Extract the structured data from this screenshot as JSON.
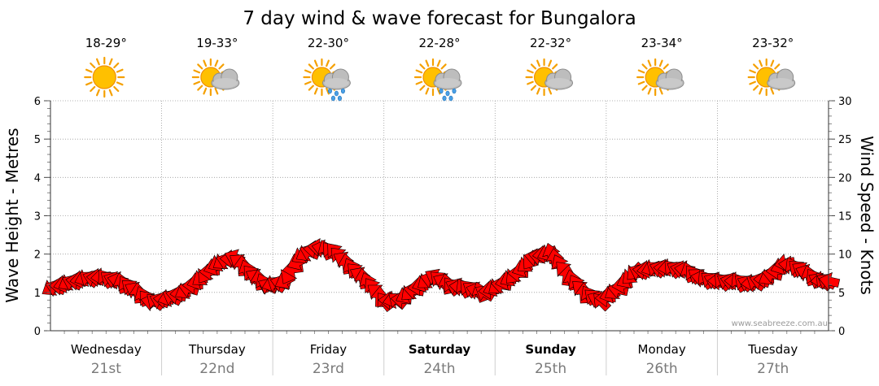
{
  "chart_data": {
    "type": "line",
    "title": "7 day wind & wave forecast for Bungalora",
    "ylabel_left": "Wave Height - Metres",
    "ylabel_right": "Wind Speed - Knots",
    "ylim_left": [
      0,
      6
    ],
    "ylim_right": [
      0,
      30
    ],
    "yticks_left": [
      "0",
      "1",
      "2",
      "3",
      "4",
      "5",
      "6"
    ],
    "yticks_right": [
      "0",
      "5",
      "10",
      "15",
      "20",
      "25",
      "30"
    ],
    "grid": true,
    "watermark": "www.seabreeze.com.au",
    "days": [
      {
        "name": "Wednesday",
        "date": "21st",
        "temp": "18-29°",
        "icon": "sun-icon",
        "bold": false
      },
      {
        "name": "Thursday",
        "date": "22nd",
        "temp": "19-33°",
        "icon": "sun-cloud-icon",
        "bold": false
      },
      {
        "name": "Friday",
        "date": "23rd",
        "temp": "22-30°",
        "icon": "sun-cloud-rain-icon",
        "bold": false
      },
      {
        "name": "Saturday",
        "date": "24th",
        "temp": "22-28°",
        "icon": "sun-cloud-rain-icon",
        "bold": true
      },
      {
        "name": "Sunday",
        "date": "25th",
        "temp": "22-32°",
        "icon": "sun-cloud-icon",
        "bold": true
      },
      {
        "name": "Monday",
        "date": "26th",
        "temp": "23-34°",
        "icon": "sun-cloud-icon",
        "bold": false
      },
      {
        "name": "Tuesday",
        "date": "27th",
        "temp": "23-32°",
        "icon": "sun-cloud-icon",
        "bold": false
      }
    ],
    "series": [
      {
        "unit": "knots",
        "color": "#ff0000",
        "stroke": "#000000",
        "x_days": [
          0.0,
          0.15,
          0.3,
          0.45,
          0.6,
          0.75,
          0.9,
          1.05,
          1.2,
          1.35,
          1.5,
          1.65,
          1.8,
          1.95,
          2.1,
          2.25,
          2.4,
          2.55,
          2.7,
          2.85,
          3.0,
          3.15,
          3.3,
          3.45,
          3.6,
          3.75,
          3.9,
          4.05,
          4.2,
          4.35,
          4.5,
          4.65,
          4.8,
          4.95,
          5.1,
          5.25,
          5.4,
          5.55,
          5.7,
          5.85,
          6.0,
          6.15,
          6.3,
          6.45,
          6.6,
          6.75,
          6.9,
          7.0
        ],
        "values": [
          5.5,
          6.2,
          6.8,
          7.0,
          6.6,
          5.4,
          3.8,
          4.2,
          5.1,
          6.8,
          8.7,
          9.6,
          7.5,
          5.9,
          6.4,
          9.7,
          10.9,
          10.4,
          8.3,
          6.4,
          3.9,
          4.1,
          5.7,
          7.1,
          5.9,
          5.6,
          5.0,
          6.0,
          7.5,
          9.6,
          10.2,
          7.3,
          5.0,
          3.9,
          5.4,
          7.6,
          8.1,
          8.2,
          8.0,
          6.9,
          6.5,
          6.5,
          6.2,
          6.9,
          8.8,
          8.0,
          6.6,
          6.5
        ]
      }
    ]
  }
}
